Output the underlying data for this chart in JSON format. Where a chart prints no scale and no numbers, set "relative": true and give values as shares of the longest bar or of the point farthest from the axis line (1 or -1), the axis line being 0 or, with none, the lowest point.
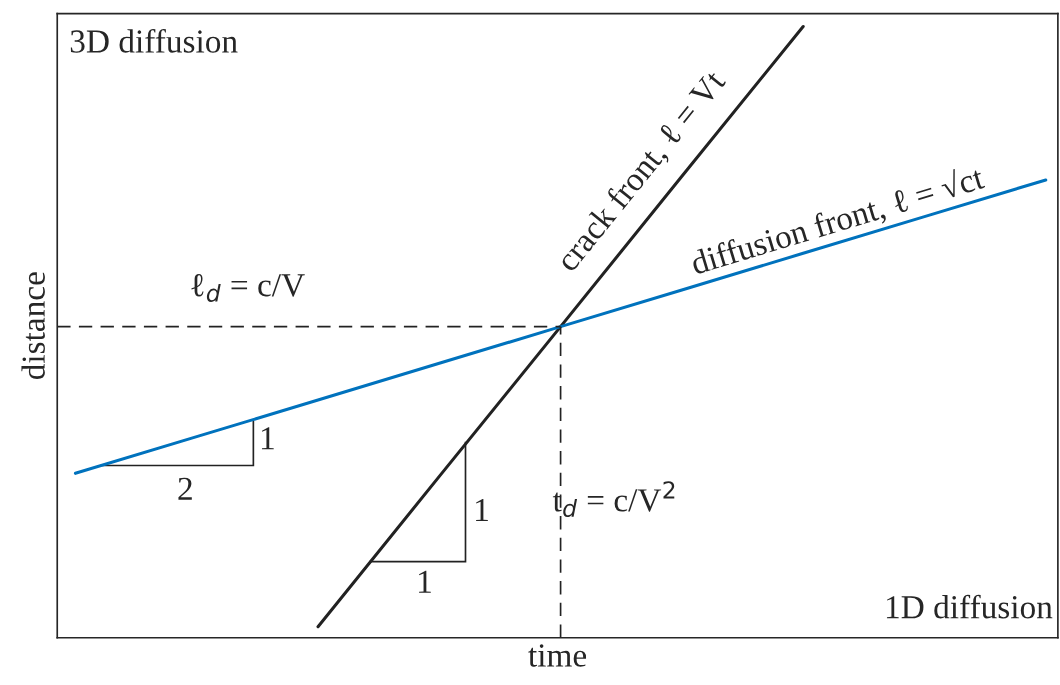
{
  "chart_data": {
    "type": "line",
    "relative": true,
    "xlabel": "time",
    "ylabel": "distance",
    "categories": [
      null,
      null,
      null,
      null,
      null,
      null,
      null,
      null,
      null
    ],
    "series": [
      {
        "color": "#222222",
        "values": [
          null,
          null,
          0.018,
          0.264,
          0.509,
          0.755,
          1.0,
          null,
          null
        ]
      },
      {
        "color": "#0072bd",
        "values": [
          0.269,
          0.329,
          0.389,
          0.449,
          0.509,
          0.569,
          0.629,
          0.689,
          0.749
        ]
      }
    ],
    "ref_lines": [
      {
        "axis": "y",
        "value": 0.509,
        "color": "#222222",
        "line_style": "dashed"
      }
    ],
    "annotations": [
      "3D diffusion",
      "1D diffusion",
      "ℓ$_{d}$ = c/V",
      "t$_{d}$ = c/V$^{2}$",
      "crack front, ℓ = Vt",
      "diffusion front, ℓ = √ct",
      "1",
      "2",
      "1",
      "1"
    ],
    "legend": false
  }
}
